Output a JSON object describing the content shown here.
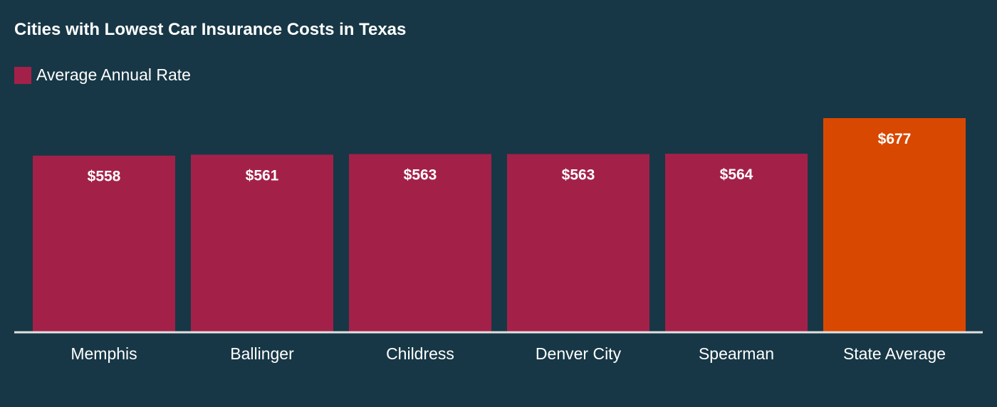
{
  "title": "Cities with Lowest Car Insurance Costs in Texas",
  "colors": {
    "background": "#173746",
    "series": "#A32149",
    "highlight": "#D94800",
    "axis": "#E0E0E0",
    "text": "#FFFFFF"
  },
  "chart_data": {
    "type": "bar",
    "categories": [
      "Memphis",
      "Ballinger",
      "Childress",
      "Denver City",
      "Spearman",
      "State Average"
    ],
    "series": [
      {
        "name": "Average Annual Rate",
        "values": [
          558,
          561,
          563,
          563,
          564,
          677
        ]
      }
    ],
    "data_labels": [
      "$558",
      "$561",
      "$563",
      "$563",
      "$564",
      "$677"
    ],
    "highlight_categories": [
      "State Average"
    ],
    "ylim": [
      0,
      677
    ],
    "grid": false,
    "legend_position": "top-left",
    "xlabel": "",
    "ylabel": ""
  }
}
